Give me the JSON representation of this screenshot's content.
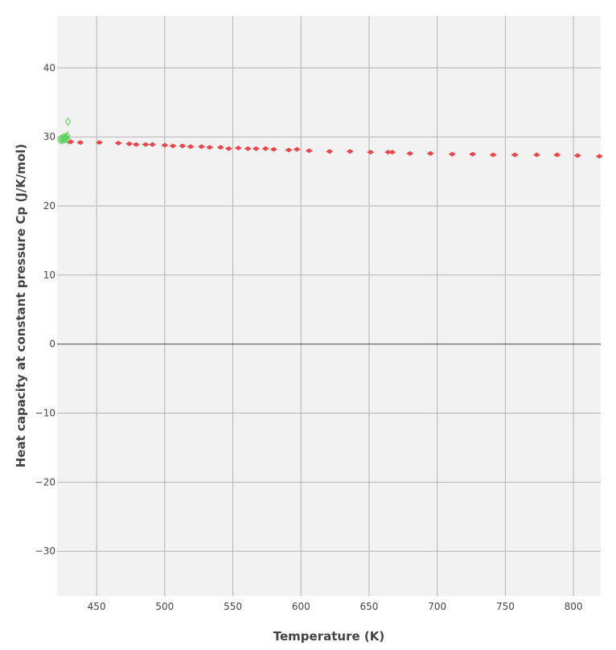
{
  "chart_data": {
    "type": "scatter",
    "title": "",
    "xlabel": "Temperature (K)",
    "ylabel": "Heat capacity at constant pressure Cp (J/K/mol)",
    "xlim": [
      421,
      820
    ],
    "ylim": [
      -36.5,
      47.5
    ],
    "x_ticks": [
      450,
      500,
      550,
      600,
      650,
      700,
      750,
      800
    ],
    "y_ticks": [
      -30,
      -20,
      -10,
      0,
      10,
      20,
      30,
      40
    ],
    "grid": true,
    "legend": "none",
    "plot_background": "#f2f2f2",
    "grid_color": "#b3b3b3",
    "zero_line_color": "#444444",
    "series": [
      {
        "marker": "diamond-open",
        "color": "#5fd35f",
        "x": [
          423,
          424,
          424.5,
          425,
          425.5,
          426,
          426.5,
          427,
          427.5,
          428,
          428.5,
          429,
          429.5,
          429
        ],
        "y": [
          29.6,
          29.8,
          29.5,
          29.7,
          29.9,
          29.6,
          29.8,
          30.0,
          29.7,
          29.9,
          30.2,
          29.6,
          29.5,
          32.2
        ]
      },
      {
        "marker": "diamond",
        "color": "#e8464a",
        "x": [
          431,
          438,
          452,
          466,
          474,
          479,
          486,
          491,
          500,
          506,
          513,
          519,
          527,
          533,
          541,
          547,
          554,
          561,
          567,
          574,
          580,
          591,
          597,
          606,
          621,
          636,
          651,
          664,
          667,
          680,
          695,
          711,
          726,
          741,
          757,
          773,
          788,
          803,
          819
        ],
        "y": [
          29.3,
          29.2,
          29.2,
          29.1,
          29.0,
          28.9,
          28.9,
          28.9,
          28.8,
          28.7,
          28.7,
          28.6,
          28.6,
          28.5,
          28.5,
          28.3,
          28.4,
          28.3,
          28.3,
          28.3,
          28.2,
          28.1,
          28.2,
          28.0,
          27.9,
          27.9,
          27.8,
          27.8,
          27.8,
          27.6,
          27.6,
          27.5,
          27.5,
          27.4,
          27.4,
          27.4,
          27.4,
          27.3,
          27.2
        ]
      }
    ]
  }
}
